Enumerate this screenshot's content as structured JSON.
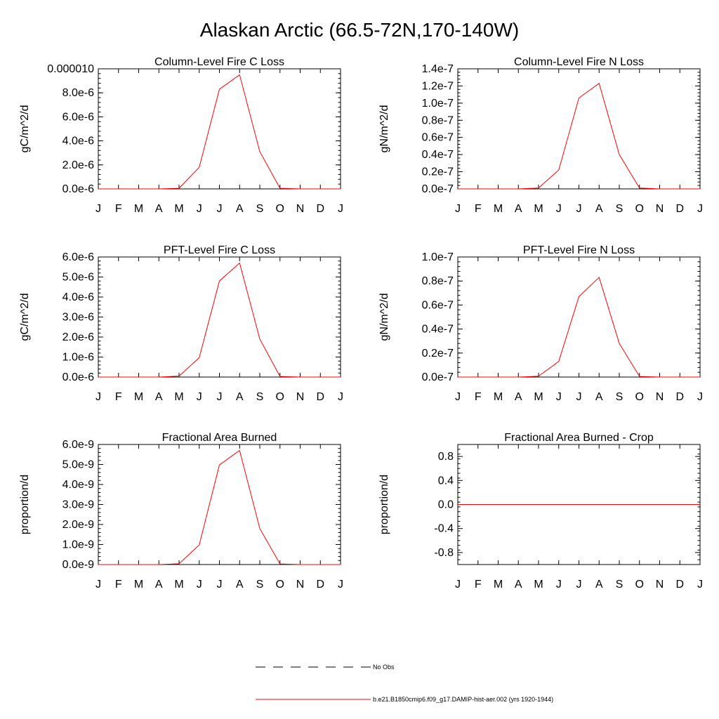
{
  "figure_title": "Alaskan Arctic (66.5-72N,170-140W)",
  "legend": {
    "obs_label": "No Obs",
    "model_label": "b.e21.B1850cmip6.f09_g17.DAMIP-hist-aer.002 (yrs 1920-1944)",
    "model_color": "#ff0000",
    "obs_color": "#000000"
  },
  "chart_data": [
    {
      "type": "line",
      "title": "Column-Level Fire C Loss",
      "ylabel": "gC/m^2/d",
      "categories": [
        "J",
        "F",
        "M",
        "A",
        "M",
        "J",
        "J",
        "A",
        "S",
        "O",
        "N",
        "D",
        "J"
      ],
      "ylim": [
        0,
        1e-05
      ],
      "yticks": [
        0,
        2e-06,
        4e-06,
        6e-06,
        8e-06,
        1e-05
      ],
      "ytick_labels": [
        "0.0e-6",
        "2.0e-6",
        "4.0e-6",
        "6.0e-6",
        "8.0e-6",
        "0.000010"
      ],
      "series": [
        {
          "values": [
            0,
            0,
            0,
            0,
            5e-08,
            1.8e-06,
            8.3e-06,
            9.5e-06,
            3.1e-06,
            5e-08,
            0,
            0,
            0
          ]
        }
      ]
    },
    {
      "type": "line",
      "title": "Column-Level Fire N Loss",
      "ylabel": "gN/m^2/d",
      "categories": [
        "J",
        "F",
        "M",
        "A",
        "M",
        "J",
        "J",
        "A",
        "S",
        "O",
        "N",
        "D",
        "J"
      ],
      "ylim": [
        0,
        1.4e-07
      ],
      "yticks": [
        0,
        2e-08,
        4e-08,
        6e-08,
        8e-08,
        1e-07,
        1.2e-07,
        1.4e-07
      ],
      "ytick_labels": [
        "0.0e-7",
        "0.2e-7",
        "0.4e-7",
        "0.6e-7",
        "0.8e-7",
        "1.0e-7",
        "1.2e-7",
        "1.4e-7"
      ],
      "series": [
        {
          "values": [
            0,
            0,
            0,
            0,
            1e-09,
            2.2e-08,
            1.06e-07,
            1.23e-07,
            4e-08,
            1e-09,
            0,
            0,
            0
          ]
        }
      ]
    },
    {
      "type": "line",
      "title": "PFT-Level Fire C Loss",
      "ylabel": "gC/m^2/d",
      "categories": [
        "J",
        "F",
        "M",
        "A",
        "M",
        "J",
        "J",
        "A",
        "S",
        "O",
        "N",
        "D",
        "J"
      ],
      "ylim": [
        0,
        6e-06
      ],
      "yticks": [
        0,
        1e-06,
        2e-06,
        3e-06,
        4e-06,
        5e-06,
        6e-06
      ],
      "ytick_labels": [
        "0.0e-6",
        "1.0e-6",
        "2.0e-6",
        "3.0e-6",
        "4.0e-6",
        "5.0e-6",
        "6.0e-6"
      ],
      "series": [
        {
          "values": [
            0,
            0,
            0,
            0,
            5e-08,
            9.7e-07,
            4.8e-06,
            5.7e-06,
            1.9e-06,
            3e-08,
            0,
            0,
            0
          ]
        }
      ]
    },
    {
      "type": "line",
      "title": "PFT-Level Fire N Loss",
      "ylabel": "gN/m^2/d",
      "categories": [
        "J",
        "F",
        "M",
        "A",
        "M",
        "J",
        "J",
        "A",
        "S",
        "O",
        "N",
        "D",
        "J"
      ],
      "ylim": [
        0,
        1e-07
      ],
      "yticks": [
        0,
        2e-08,
        4e-08,
        6e-08,
        8e-08,
        1e-07
      ],
      "ytick_labels": [
        "0.0e-7",
        "0.2e-7",
        "0.4e-7",
        "0.6e-7",
        "0.8e-7",
        "1.0e-7"
      ],
      "series": [
        {
          "values": [
            0,
            0,
            0,
            0,
            7e-10,
            1.3e-08,
            6.7e-08,
            8.3e-08,
            2.8e-08,
            5e-10,
            0,
            0,
            0
          ]
        }
      ]
    },
    {
      "type": "line",
      "title": "Fractional Area Burned",
      "ylabel": "proportion/d",
      "categories": [
        "J",
        "F",
        "M",
        "A",
        "M",
        "J",
        "J",
        "A",
        "S",
        "O",
        "N",
        "D",
        "J"
      ],
      "ylim": [
        0,
        6e-09
      ],
      "yticks": [
        0,
        1e-09,
        2e-09,
        3e-09,
        4e-09,
        5e-09,
        6e-09
      ],
      "ytick_labels": [
        "0.0e-9",
        "1.0e-9",
        "2.0e-9",
        "3.0e-9",
        "4.0e-9",
        "5.0e-9",
        "6.0e-9"
      ],
      "series": [
        {
          "values": [
            0,
            0,
            0,
            0,
            4e-11,
            9.8e-10,
            4.98e-09,
            5.7e-09,
            1.8e-09,
            3e-11,
            0,
            0,
            0
          ]
        }
      ]
    },
    {
      "type": "line",
      "title": "Fractional Area Burned - Crop",
      "ylabel": "proportion/d",
      "categories": [
        "J",
        "F",
        "M",
        "A",
        "M",
        "J",
        "J",
        "A",
        "S",
        "O",
        "N",
        "D",
        "J"
      ],
      "ylim": [
        -1,
        1
      ],
      "yticks": [
        -0.8,
        -0.4,
        0,
        0.4,
        0.8
      ],
      "ytick_labels": [
        "-0.8",
        "-0.4",
        "0.0",
        "0.4",
        "0.8"
      ],
      "series": [
        {
          "values": [
            0,
            0,
            0,
            0,
            0,
            0,
            0,
            0,
            0,
            0,
            0,
            0,
            0
          ]
        }
      ]
    }
  ]
}
